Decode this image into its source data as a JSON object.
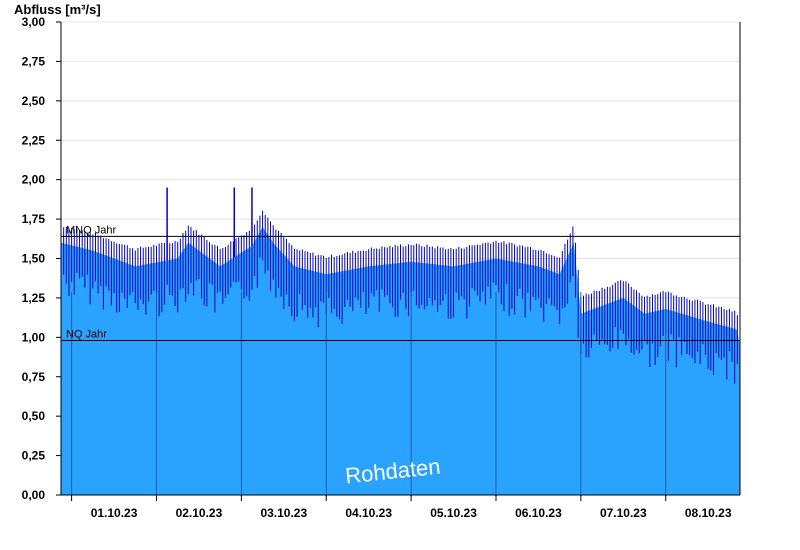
{
  "chart_data": {
    "type": "area",
    "ylabel": "Abfluss [m³/s]",
    "ylim": [
      0,
      3.0
    ],
    "ytick_labels": [
      "0,00",
      "0,25",
      "0,50",
      "0,75",
      "1,00",
      "1,25",
      "1,50",
      "1,75",
      "2,00",
      "2,25",
      "2,50",
      "2,75",
      "3,00"
    ],
    "xlim": [
      "2023-09-30T21:00",
      "2023-10-08T21:00"
    ],
    "x_tick_labels": [
      "01.10.23",
      "02.10.23",
      "03.10.23",
      "04.10.23",
      "05.10.23",
      "06.10.23",
      "07.10.23",
      "08.10.23"
    ],
    "day_starts": [
      "2023-10-01",
      "2023-10-02",
      "2023-10-03",
      "2023-10-04",
      "2023-10-05",
      "2023-10-06",
      "2023-10-07",
      "2023-10-08"
    ],
    "grid": true,
    "reference_lines": [
      {
        "label": "MNQ Jahr",
        "value": 1.64
      },
      {
        "label": "NQ Jahr",
        "value": 0.98
      }
    ],
    "watermark": "Rohdaten",
    "series": [
      {
        "x": [
          "2023-09-30T21:00",
          "2023-10-01T06:00",
          "2023-10-01T12:00",
          "2023-10-01T18:00",
          "2023-10-02T06:00",
          "2023-10-02T09:00",
          "2023-10-02T12:00",
          "2023-10-02T18:00",
          "2023-10-03T03:00",
          "2023-10-03T06:00",
          "2023-10-03T09:00",
          "2023-10-03T15:00",
          "2023-10-04T00:00",
          "2023-10-04T12:00",
          "2023-10-05T00:00",
          "2023-10-05T12:00",
          "2023-10-06T00:00",
          "2023-10-06T12:00",
          "2023-10-06T18:00",
          "2023-10-06T22:00",
          "2023-10-07T00:00",
          "2023-10-07T12:00",
          "2023-10-07T18:00",
          "2023-10-08T00:00",
          "2023-10-08T12:00",
          "2023-10-08T20:00",
          "2023-10-08T21:00"
        ],
        "y": [
          1.6,
          1.55,
          1.5,
          1.45,
          1.5,
          1.6,
          1.55,
          1.45,
          1.58,
          1.7,
          1.6,
          1.45,
          1.4,
          1.45,
          1.48,
          1.45,
          1.5,
          1.45,
          1.4,
          1.6,
          1.15,
          1.25,
          1.15,
          1.18,
          1.1,
          1.05,
          0.95
        ],
        "color": "#29A3FF",
        "stroke_color": "#0000CC"
      }
    ],
    "peaks": [
      {
        "x": "2023-10-02T03:00",
        "y": 1.95
      },
      {
        "x": "2023-10-02T22:00",
        "y": 1.95
      },
      {
        "x": "2023-10-03T03:00",
        "y": 1.95
      }
    ]
  }
}
